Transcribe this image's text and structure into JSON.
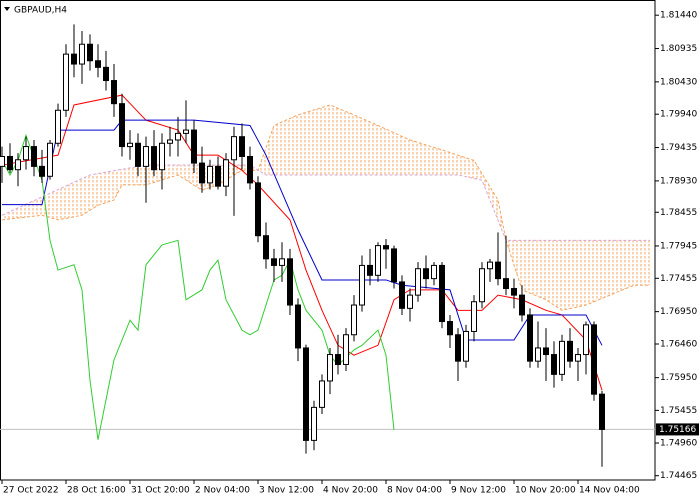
{
  "chart_data": {
    "type": "candlestick",
    "title": "GBPAUD,H4",
    "categories": [
      "27 Oct 2022",
      null,
      null,
      null,
      null,
      null,
      null,
      null,
      "28 Oct 16:00",
      null,
      null,
      null,
      null,
      null,
      null,
      null,
      "31 Oct 20:00",
      null,
      null,
      null,
      null,
      null,
      null,
      null,
      "2 Nov 04:00",
      null,
      null,
      null,
      null,
      null,
      null,
      null,
      "3 Nov 12:00",
      null,
      null,
      null,
      null,
      null,
      null,
      null,
      "4 Nov 20:00",
      null,
      null,
      null,
      null,
      null,
      null,
      null,
      "8 Nov 04:00",
      null,
      null,
      null,
      null,
      null,
      null,
      null,
      "9 Nov 12:00",
      null,
      null,
      null,
      null,
      null,
      null,
      null,
      "10 Nov 20:00",
      null,
      null,
      null,
      null,
      null,
      null,
      null,
      "14 Nov 04:00",
      null,
      null,
      null
    ],
    "open": [
      1.7915,
      1.793,
      1.791,
      1.7925,
      1.7945,
      1.7915,
      1.79,
      1.795,
      1.8,
      1.8085,
      1.807,
      1.81,
      1.8075,
      1.8065,
      1.8045,
      1.801,
      1.7945,
      1.795,
      1.7915,
      1.7945,
      1.791,
      1.795,
      1.7955,
      1.7965,
      1.797,
      1.792,
      1.789,
      1.7915,
      1.7885,
      1.7925,
      1.796,
      1.793,
      1.789,
      1.781,
      1.7775,
      1.7765,
      1.7775,
      1.7705,
      1.764,
      1.75,
      1.755,
      1.759,
      1.763,
      1.7615,
      1.766,
      1.7705,
      1.7765,
      1.775,
      1.7795,
      1.779,
      1.774,
      1.77,
      1.772,
      1.776,
      1.7745,
      1.7765,
      1.768,
      1.766,
      1.762,
      1.7665,
      1.771,
      1.776,
      1.777,
      1.7745,
      1.773,
      1.772,
      1.769,
      1.762,
      1.764,
      1.763,
      1.76,
      1.765,
      1.762,
      1.763,
      1.7675,
      1.757
    ],
    "high": [
      1.7945,
      1.795,
      1.7935,
      1.796,
      1.7955,
      1.794,
      1.7955,
      1.801,
      1.81,
      1.813,
      1.812,
      1.8115,
      1.81,
      1.809,
      1.807,
      1.8025,
      1.797,
      1.7965,
      1.796,
      1.797,
      1.7965,
      1.7975,
      1.799,
      1.8015,
      1.7985,
      1.7945,
      1.7925,
      1.793,
      1.7935,
      1.7975,
      1.798,
      1.7945,
      1.79,
      1.783,
      1.779,
      1.78,
      1.779,
      1.7715,
      1.7645,
      1.756,
      1.76,
      1.764,
      1.766,
      1.767,
      1.772,
      1.778,
      1.779,
      1.78,
      1.7805,
      1.7795,
      1.775,
      1.773,
      1.777,
      1.778,
      1.777,
      1.777,
      1.769,
      1.767,
      1.7675,
      1.772,
      1.777,
      1.7775,
      1.7815,
      1.781,
      1.7745,
      1.7735,
      1.77,
      1.768,
      1.767,
      1.765,
      1.766,
      1.767,
      1.764,
      1.768,
      1.768,
      1.7575
    ],
    "low": [
      1.789,
      1.7905,
      1.7885,
      1.791,
      1.79,
      1.789,
      1.7895,
      1.7945,
      1.799,
      1.805,
      1.804,
      1.806,
      1.805,
      1.803,
      1.799,
      1.793,
      1.7925,
      1.79,
      1.786,
      1.79,
      1.788,
      1.793,
      1.793,
      1.795,
      1.7905,
      1.7875,
      1.788,
      1.788,
      1.787,
      1.784,
      1.791,
      1.788,
      1.78,
      1.776,
      1.774,
      1.774,
      1.769,
      1.762,
      1.748,
      1.7485,
      1.754,
      1.757,
      1.76,
      1.7605,
      1.765,
      1.7695,
      1.7735,
      1.774,
      1.776,
      1.773,
      1.769,
      1.768,
      1.771,
      1.773,
      1.7735,
      1.767,
      1.764,
      1.759,
      1.761,
      1.765,
      1.77,
      1.774,
      1.7735,
      1.772,
      1.77,
      1.768,
      1.761,
      1.761,
      1.759,
      1.758,
      1.759,
      1.761,
      1.759,
      1.76,
      1.756,
      1.746
    ],
    "close": [
      1.793,
      1.791,
      1.7925,
      1.7945,
      1.7915,
      1.79,
      1.795,
      1.8,
      1.8085,
      1.807,
      1.81,
      1.8075,
      1.8065,
      1.8045,
      1.801,
      1.7945,
      1.795,
      1.7915,
      1.7945,
      1.791,
      1.795,
      1.7955,
      1.7965,
      1.797,
      1.792,
      1.789,
      1.7915,
      1.7885,
      1.7925,
      1.796,
      1.793,
      1.789,
      1.781,
      1.7775,
      1.7765,
      1.7775,
      1.7705,
      1.764,
      1.75,
      1.755,
      1.759,
      1.763,
      1.7615,
      1.766,
      1.7705,
      1.7765,
      1.775,
      1.7795,
      1.779,
      1.774,
      1.77,
      1.772,
      1.776,
      1.7745,
      1.7765,
      1.768,
      1.766,
      1.762,
      1.7665,
      1.771,
      1.776,
      1.777,
      1.7745,
      1.773,
      1.772,
      1.769,
      1.762,
      1.764,
      1.763,
      1.76,
      1.765,
      1.762,
      1.763,
      1.7675,
      1.757,
      1.75166
    ],
    "up_color": "#ffffff",
    "down_color": "#000000",
    "outline_color": "#000000",
    "lines": [
      {
        "color": "#ff0000",
        "x": [
          0,
          7,
          9,
          15,
          18,
          22,
          24,
          27,
          30,
          32,
          36,
          38,
          40,
          42,
          44,
          47,
          49,
          51,
          55,
          57,
          60,
          62,
          65,
          68,
          70,
          73,
          75
        ],
        "values": [
          1.7917,
          1.7932,
          1.8008,
          1.8023,
          1.7985,
          1.797,
          1.7932,
          1.7932,
          1.7909,
          1.7887,
          1.7834,
          1.7758,
          1.7697,
          1.7644,
          1.7629,
          1.7644,
          1.7713,
          1.7728,
          1.7728,
          1.7697,
          1.7697,
          1.772,
          1.7713,
          1.7697,
          1.769,
          1.7652,
          1.7576
        ]
      },
      {
        "color": "#0000cd",
        "x": [
          0,
          5,
          7,
          14,
          15,
          24,
          31,
          33,
          37,
          40,
          48,
          50,
          56,
          58,
          64,
          66,
          73,
          75
        ],
        "values": [
          1.7857,
          1.7857,
          1.797,
          1.797,
          1.7985,
          1.7985,
          1.7977,
          1.7932,
          1.7819,
          1.7743,
          1.7743,
          1.7735,
          1.7728,
          1.7652,
          1.7652,
          1.769,
          1.769,
          1.7644
        ]
      },
      {
        "color": "#32cd32",
        "x": [
          0,
          1,
          2,
          3,
          5,
          6,
          7,
          9,
          10,
          11,
          12,
          14,
          16,
          17,
          18,
          20,
          22,
          23,
          25,
          26,
          27,
          28,
          30,
          31,
          32,
          34,
          35,
          36,
          37,
          38,
          40,
          41,
          42,
          44,
          45,
          47,
          48,
          49
        ],
        "values": [
          1.7924,
          1.7902,
          1.7924,
          1.7962,
          1.7894,
          1.7803,
          1.7758,
          1.7766,
          1.7728,
          1.7591,
          1.7501,
          1.7622,
          1.7682,
          1.7667,
          1.7766,
          1.7796,
          1.7803,
          1.7713,
          1.7728,
          1.7758,
          1.7773,
          1.7713,
          1.7667,
          1.766,
          1.7667,
          1.7743,
          1.775,
          1.7773,
          1.7728,
          1.7697,
          1.7667,
          1.7629,
          1.7614,
          1.7637,
          1.7644,
          1.7667,
          1.7629,
          1.7516
        ]
      }
    ],
    "cloud": {
      "color": "#f4a460",
      "span_a": {
        "color": "#f4a460",
        "x": [
          0,
          5,
          7,
          10,
          12,
          14,
          15,
          18,
          22,
          25,
          27,
          30,
          32,
          34,
          37,
          41,
          44,
          47,
          51,
          55,
          59,
          62,
          63,
          65,
          68,
          70,
          73,
          76,
          79,
          81
        ],
        "values": [
          1.7834,
          1.7841,
          1.7834,
          1.7841,
          1.7856,
          1.7864,
          1.7887,
          1.7887,
          1.7902,
          1.7879,
          1.7887,
          1.7909,
          1.7909,
          1.7977,
          1.7993,
          1.8008,
          1.7993,
          1.7977,
          1.7955,
          1.794,
          1.7924,
          1.7864,
          1.7803,
          1.7728,
          1.7713,
          1.7697,
          1.7705,
          1.772,
          1.7735,
          1.7735
        ]
      },
      "span_b": {
        "color": "#d8a8d8",
        "x": [
          0,
          11,
          18,
          31,
          33,
          57,
          60,
          63,
          81
        ],
        "values": [
          1.7841,
          1.7902,
          1.7917,
          1.7917,
          1.7902,
          1.7902,
          1.7894,
          1.7803,
          1.7803
        ]
      }
    },
    "last_price": 1.75166,
    "xlim": [
      -0.25,
      81.625
    ],
    "ylim": [
      1.744,
      1.8167
    ],
    "yticks": [
      {
        "value": 1.8144,
        "label": "1.81440"
      },
      {
        "value": 1.80935,
        "label": "1.80935"
      },
      {
        "value": 1.8043,
        "label": "1.80430"
      },
      {
        "value": 1.7994,
        "label": "1.79940"
      },
      {
        "value": 1.79435,
        "label": "1.79435"
      },
      {
        "value": 1.7893,
        "label": "1.78930"
      },
      {
        "value": 1.78455,
        "label": "1.78455"
      },
      {
        "value": 1.77945,
        "label": "1.77945"
      },
      {
        "value": 1.77455,
        "label": "1.77455"
      },
      {
        "value": 1.7695,
        "label": "1.76950"
      },
      {
        "value": 1.7646,
        "label": "1.76460"
      },
      {
        "value": 1.7595,
        "label": "1.75950"
      },
      {
        "value": 1.75455,
        "label": "1.75455"
      },
      {
        "value": 1.7496,
        "label": "1.74960"
      },
      {
        "value": 1.74465,
        "label": "1.74465"
      }
    ]
  }
}
